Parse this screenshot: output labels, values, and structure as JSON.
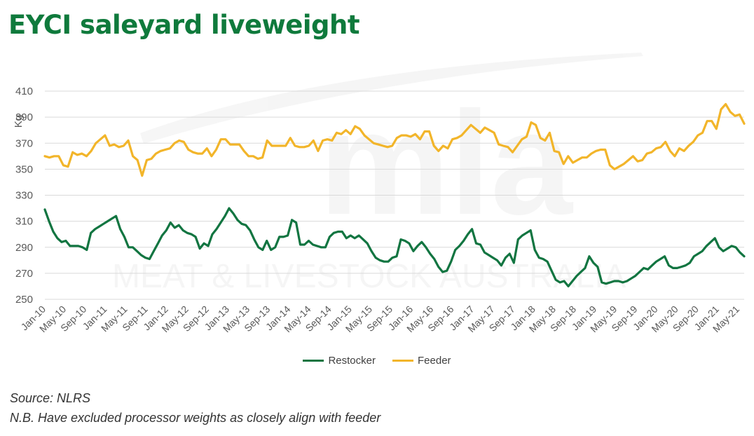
{
  "title": "EYCI saleyard liveweight",
  "source": "Source: NLRS",
  "note": "N.B. Have excluded processor weights as closely align with feeder",
  "watermark": {
    "logo": "mla",
    "text": "MEAT & LIVESTOCK AUSTRALIA"
  },
  "colors": {
    "title": "#0f7a3c",
    "restocker": "#127541",
    "feeder": "#f2b52a",
    "grid": "#d9d9d9",
    "text": "#595959"
  },
  "chart_data": {
    "type": "line",
    "ylabel": "Kg",
    "ylim": [
      250,
      410
    ],
    "yticks": [
      250,
      270,
      290,
      310,
      330,
      350,
      370,
      390,
      410
    ],
    "grid": true,
    "legend_position": "bottom",
    "x_tick_labels": [
      "Jan-10",
      "May-10",
      "Sep-10",
      "Jan-11",
      "May-11",
      "Sep-11",
      "Jan-12",
      "May-12",
      "Sep-12",
      "Jan-13",
      "May-13",
      "Sep-13",
      "Jan-14",
      "May-14",
      "Sep-14",
      "Jan-15",
      "May-15",
      "Sep-15",
      "Jan-16",
      "May-16",
      "Sep-16",
      "Jan-17",
      "May-17",
      "Sep-17",
      "Jan-18",
      "May-18",
      "Sep-18",
      "Jan-19",
      "May-19",
      "Sep-19",
      "Jan-20",
      "May-20",
      "Sep-20",
      "Jan-21",
      "May-21"
    ],
    "series": [
      {
        "name": "Restocker",
        "values": [
          319,
          310,
          302,
          297,
          294,
          295,
          291,
          291,
          291,
          290,
          288,
          301,
          304,
          306,
          308,
          310,
          312,
          314,
          304,
          298,
          290,
          290,
          287,
          284,
          282,
          281,
          287,
          293,
          299,
          303,
          309,
          305,
          307,
          303,
          301,
          300,
          298,
          289,
          293,
          291,
          300,
          304,
          309,
          314,
          320,
          316,
          311,
          308,
          307,
          303,
          296,
          290,
          288,
          295,
          288,
          290,
          298,
          298,
          299,
          311,
          309,
          292,
          292,
          295,
          292,
          291,
          290,
          290,
          298,
          301,
          302,
          302,
          297,
          299,
          297,
          299,
          296,
          293,
          287,
          282,
          280,
          279,
          279,
          282,
          283,
          296,
          295,
          293,
          287,
          291,
          294,
          290,
          285,
          281,
          275,
          271,
          272,
          279,
          288,
          291,
          295,
          300,
          304,
          293,
          292,
          286,
          284,
          282,
          280,
          276,
          282,
          285,
          278,
          296,
          299,
          301,
          303,
          288,
          282,
          281,
          279,
          272,
          265,
          263,
          264,
          260,
          264,
          268,
          271,
          274,
          283,
          278,
          275,
          263,
          262,
          263,
          264,
          264,
          263,
          264,
          266,
          268,
          271,
          274,
          273,
          276,
          279,
          281,
          283,
          276,
          274,
          274,
          275,
          276,
          278,
          283,
          285,
          287,
          291,
          294,
          297,
          290,
          287,
          289,
          291,
          290,
          286,
          283
        ],
        "extra": ""
      },
      {
        "name": "Feeder",
        "values": [
          360,
          359,
          360,
          360,
          353,
          352,
          363,
          361,
          362,
          360,
          364,
          370,
          373,
          376,
          368,
          369,
          367,
          368,
          372,
          360,
          357,
          345,
          357,
          358,
          362,
          364,
          365,
          366,
          370,
          372,
          371,
          365,
          363,
          362,
          362,
          366,
          360,
          365,
          373,
          373,
          369,
          369,
          369,
          364,
          360,
          360,
          358,
          359,
          372,
          368,
          368,
          368,
          368,
          374,
          368,
          367,
          367,
          368,
          372,
          364,
          372,
          373,
          372,
          378,
          377,
          380,
          377,
          383,
          381,
          376,
          373,
          370,
          369,
          368,
          367,
          368,
          374,
          376,
          376,
          375,
          377,
          373,
          379,
          379,
          368,
          364,
          368,
          366,
          373,
          374,
          376,
          380,
          384,
          381,
          378,
          382,
          380,
          378,
          369,
          368,
          367,
          363,
          368,
          373,
          375,
          386,
          384,
          374,
          372,
          378,
          364,
          363,
          354,
          360,
          355,
          357,
          359,
          359,
          362,
          364,
          365,
          365,
          353,
          350,
          352,
          354,
          357,
          360,
          356,
          357,
          362,
          363,
          366,
          367,
          371,
          364,
          360,
          366,
          364,
          368,
          371,
          376,
          378,
          387,
          387,
          381,
          396,
          400,
          394,
          391,
          392,
          385
        ],
        "extra": ""
      }
    ]
  }
}
